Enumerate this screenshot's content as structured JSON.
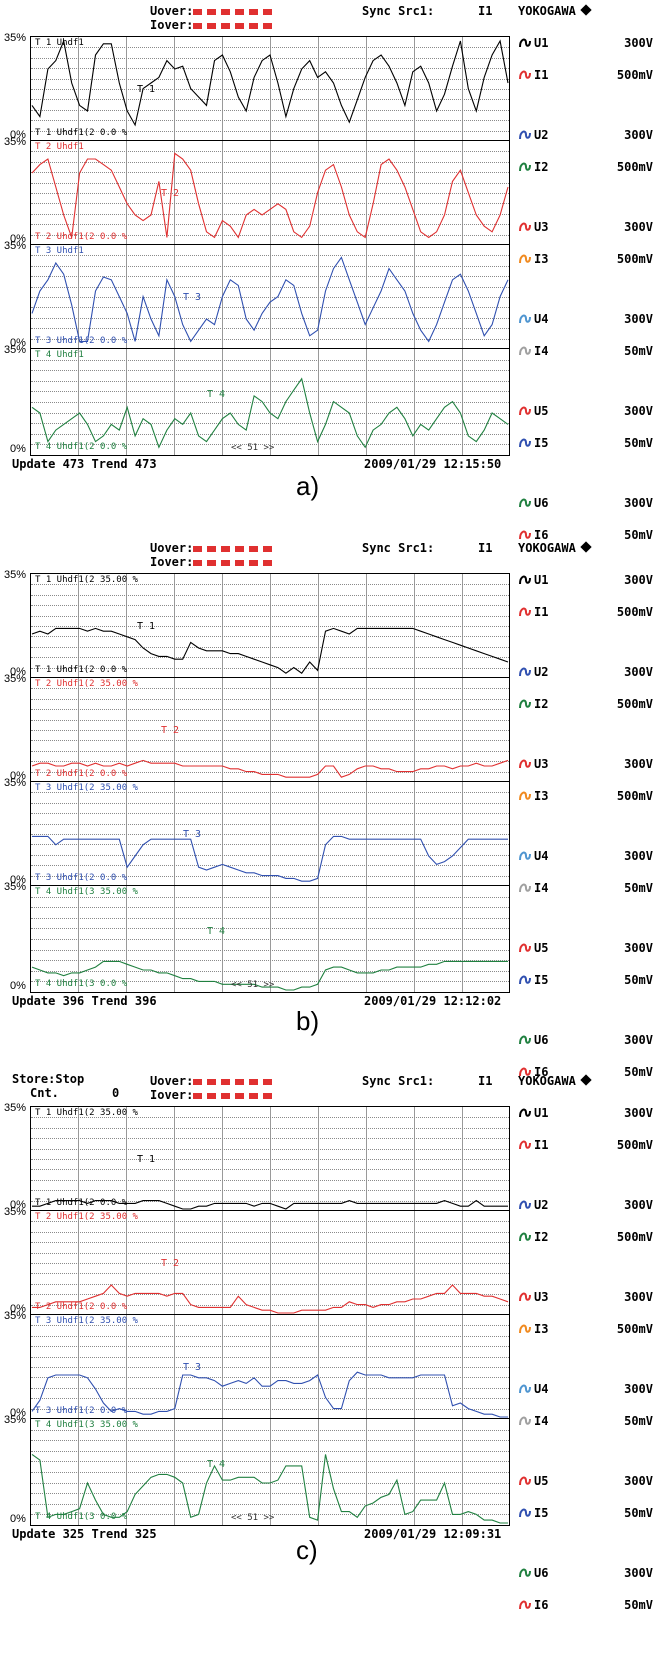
{
  "screens": [
    {
      "caption": "a)",
      "store": "",
      "cnt_label": "",
      "cnt_value": "",
      "uover": "Uover:",
      "iover": "Iover:",
      "sync": "Sync Src1:",
      "sync_value": "I1",
      "brand": "YOKOGAWA",
      "update_label": "Update",
      "update_value": "473",
      "trend_label": "Trend",
      "trend_value": "473",
      "datetime": "2009/01/29 12:15:50",
      "scroll": "<< 51 >>",
      "panels": [
        {
          "title": "T 1 Uhdf1",
          "foot": "T 1 Uhdf1(2 0.0 %",
          "tag": "T 1",
          "color": "#000000",
          "ymax": "35%",
          "ymin": "0%",
          "values": [
            12,
            8,
            25,
            28,
            35,
            20,
            12,
            10,
            30,
            34,
            34,
            20,
            10,
            5,
            18,
            20,
            22,
            28,
            25,
            26,
            18,
            15,
            12,
            28,
            30,
            24,
            15,
            10,
            22,
            28,
            30,
            20,
            8,
            18,
            25,
            28,
            22,
            24,
            20,
            12,
            6,
            14,
            22,
            28,
            30,
            26,
            20,
            12,
            24,
            26,
            20,
            10,
            16,
            26,
            35,
            18,
            10,
            22,
            30,
            35,
            20
          ]
        },
        {
          "title": "T 2 Uhdf1",
          "foot": "T 2 Uhdf1(2 0.0 %",
          "tag": "T 2",
          "color": "#e03030",
          "ymax": "35%",
          "ymin": "0%",
          "values": [
            25,
            28,
            30,
            20,
            10,
            2,
            25,
            30,
            30,
            28,
            26,
            20,
            14,
            10,
            8,
            10,
            22,
            2,
            32,
            30,
            26,
            14,
            4,
            2,
            8,
            6,
            2,
            10,
            12,
            10,
            12,
            14,
            12,
            4,
            2,
            6,
            18,
            26,
            28,
            20,
            10,
            4,
            2,
            14,
            28,
            30,
            26,
            20,
            12,
            4,
            2,
            4,
            10,
            22,
            26,
            18,
            10,
            6,
            4,
            10,
            20
          ]
        },
        {
          "title": "T 3 Uhdf1",
          "foot": "T 3 Uhdf1(2 0.0 %",
          "tag": "T 3",
          "color": "#3050b0",
          "ymax": "35%",
          "ymin": "0%",
          "values": [
            12,
            20,
            24,
            30,
            26,
            15,
            2,
            2,
            20,
            25,
            24,
            18,
            12,
            2,
            18,
            10,
            4,
            24,
            18,
            8,
            2,
            6,
            10,
            8,
            18,
            24,
            22,
            10,
            6,
            12,
            16,
            18,
            24,
            22,
            12,
            4,
            6,
            20,
            28,
            32,
            24,
            16,
            8,
            14,
            20,
            28,
            24,
            20,
            12,
            6,
            2,
            8,
            16,
            24,
            26,
            20,
            12,
            4,
            8,
            18,
            24
          ]
        },
        {
          "title": "T 4 Uhdf1",
          "foot": "T 4 Uhdf1(2 0.0 %",
          "tag": "T 4",
          "color": "#208040",
          "ymax": "35%",
          "ymin": "0%",
          "values": [
            16,
            14,
            4,
            8,
            10,
            12,
            14,
            10,
            4,
            6,
            10,
            8,
            16,
            6,
            12,
            10,
            2,
            8,
            12,
            10,
            14,
            6,
            4,
            8,
            12,
            14,
            10,
            8,
            20,
            18,
            14,
            12,
            18,
            22,
            26,
            14,
            4,
            10,
            18,
            16,
            14,
            6,
            2,
            8,
            10,
            14,
            16,
            12,
            6,
            10,
            8,
            12,
            16,
            18,
            14,
            6,
            4,
            8,
            14,
            12,
            10
          ]
        }
      ]
    },
    {
      "caption": "b)",
      "store": "",
      "cnt_label": "",
      "cnt_value": "",
      "uover": "Uover:",
      "iover": "Iover:",
      "sync": "Sync Src1:",
      "sync_value": "I1",
      "brand": "YOKOGAWA",
      "update_label": "Update",
      "update_value": "396",
      "trend_label": "Trend",
      "trend_value": "396",
      "datetime": "2009/01/29 12:12:02",
      "scroll": "<< 51 >>",
      "panels": [
        {
          "title": "T 1 Uhdf1(2 35.00 %",
          "foot": "T 1 Uhdf1(2 0.0 %",
          "tag": "T 1",
          "color": "#000000",
          "ymax": "35%",
          "ymin": "0%",
          "values": [
            15,
            16,
            15,
            17,
            17,
            17,
            17,
            16,
            17,
            16,
            16,
            15,
            14,
            13,
            10,
            8,
            7,
            7,
            6,
            6,
            12,
            10,
            9,
            9,
            9,
            8,
            8,
            7,
            6,
            5,
            4,
            3,
            1,
            3,
            1,
            5,
            2,
            16,
            17,
            16,
            15,
            17,
            17,
            17,
            17,
            17,
            17,
            17,
            17,
            16,
            15,
            14,
            13,
            12,
            11,
            10,
            9,
            8,
            7,
            6,
            5
          ]
        },
        {
          "title": "T 2 Uhdf1(2 35.00 %",
          "foot": "T 2 Uhdf1(2 0.0 %",
          "tag": "T 2",
          "color": "#e03030",
          "ymax": "35%",
          "ymin": "0%",
          "values": [
            5,
            6,
            6,
            5,
            5,
            6,
            6,
            5,
            6,
            5,
            5,
            6,
            5,
            6,
            7,
            6,
            6,
            6,
            6,
            5,
            5,
            5,
            5,
            5,
            5,
            4,
            4,
            3,
            3,
            2,
            2,
            2,
            1,
            1,
            1,
            1,
            2,
            5,
            5,
            1,
            2,
            4,
            5,
            5,
            4,
            4,
            3,
            3,
            3,
            4,
            4,
            5,
            5,
            4,
            5,
            5,
            6,
            5,
            5,
            6,
            7
          ]
        },
        {
          "title": "T 3 Uhdf1(2 35.00 %",
          "foot": "T 3 Uhdf1(2 0.0 %",
          "tag": "T 3",
          "color": "#3050b0",
          "ymax": "35%",
          "ymin": "0%",
          "values": [
            17,
            17,
            17,
            14,
            16,
            16,
            16,
            16,
            16,
            16,
            16,
            16,
            6,
            10,
            14,
            16,
            16,
            16,
            16,
            16,
            16,
            6,
            5,
            6,
            7,
            6,
            5,
            4,
            4,
            3,
            3,
            3,
            2,
            2,
            1,
            1,
            2,
            14,
            17,
            17,
            16,
            16,
            16,
            16,
            16,
            16,
            16,
            16,
            16,
            16,
            10,
            7,
            8,
            10,
            13,
            16,
            16,
            16,
            16,
            16,
            16
          ]
        },
        {
          "title": "T 4 Uhdf1(3 35.00 %",
          "foot": "T 4 Uhdf1(3 0.0 %",
          "tag": "T 4",
          "color": "#208040",
          "ymax": "35%",
          "ymin": "0%",
          "values": [
            8,
            7,
            6,
            6,
            5,
            6,
            6,
            7,
            8,
            10,
            10,
            10,
            9,
            8,
            7,
            7,
            6,
            6,
            5,
            4,
            4,
            3,
            3,
            3,
            2,
            2,
            2,
            2,
            2,
            1,
            1,
            1,
            0,
            0,
            1,
            1,
            2,
            7,
            8,
            8,
            7,
            6,
            6,
            6,
            7,
            7,
            8,
            8,
            8,
            8,
            9,
            9,
            10,
            10,
            10,
            10,
            10,
            10,
            10,
            10,
            10
          ]
        }
      ]
    },
    {
      "caption": "c)",
      "store": "Store:Stop",
      "cnt_label": "Cnt.",
      "cnt_value": "0",
      "uover": "Uover:",
      "iover": "Iover:",
      "sync": "Sync Src1:",
      "sync_value": "I1",
      "brand": "YOKOGAWA",
      "update_label": "Update",
      "update_value": "325",
      "trend_label": "Trend",
      "trend_value": "325",
      "datetime": "2009/01/29 12:09:31",
      "scroll": "<< 51 >>",
      "panels": [
        {
          "title": "T 1 Uhdf1(2 35.00 %",
          "foot": "T 1 Uhdf1(2 0.0 %",
          "tag": "T 1",
          "color": "#000000",
          "ymax": "35%",
          "ymin": "0%",
          "values": [
            1,
            1,
            2,
            3,
            3,
            3,
            3,
            2,
            3,
            3,
            3,
            2,
            2,
            2,
            3,
            3,
            3,
            2,
            1,
            0,
            0,
            1,
            1,
            2,
            2,
            2,
            2,
            2,
            1,
            2,
            2,
            1,
            0,
            2,
            2,
            2,
            2,
            2,
            2,
            2,
            3,
            2,
            2,
            2,
            2,
            2,
            2,
            2,
            2,
            2,
            2,
            2,
            3,
            2,
            1,
            1,
            3,
            1,
            1,
            1,
            1
          ]
        },
        {
          "title": "T 2 Uhdf1(2 35.00 %",
          "foot": "T 2 Uhdf1(2 0.0 %",
          "tag": "T 2",
          "color": "#e03030",
          "ymax": "35%",
          "ymin": "0%",
          "values": [
            2,
            2,
            3,
            4,
            4,
            4,
            4,
            5,
            6,
            7,
            10,
            7,
            6,
            7,
            7,
            7,
            7,
            6,
            7,
            7,
            3,
            2,
            2,
            2,
            2,
            2,
            6,
            3,
            2,
            1,
            1,
            0,
            0,
            0,
            1,
            1,
            1,
            1,
            2,
            2,
            4,
            3,
            3,
            2,
            3,
            3,
            4,
            4,
            5,
            5,
            6,
            7,
            7,
            10,
            7,
            7,
            7,
            6,
            6,
            5,
            4
          ]
        },
        {
          "title": "T 3 Uhdf1(2 35.00 %",
          "foot": "T 3 Uhdf1(2 0.0 %",
          "tag": "T 3",
          "color": "#3050b0",
          "ymax": "35%",
          "ymin": "0%",
          "values": [
            2,
            6,
            14,
            15,
            15,
            15,
            15,
            14,
            10,
            5,
            2,
            3,
            2,
            2,
            1,
            1,
            2,
            2,
            3,
            15,
            15,
            14,
            14,
            13,
            11,
            12,
            13,
            12,
            14,
            11,
            11,
            13,
            13,
            12,
            12,
            13,
            15,
            7,
            3,
            3,
            13,
            16,
            15,
            15,
            15,
            14,
            14,
            14,
            14,
            15,
            15,
            15,
            15,
            4,
            5,
            3,
            2,
            1,
            1,
            0,
            0
          ]
        },
        {
          "title": "T 4 Uhdf1(3 35.00 %",
          "foot": "T 4 Uhdf1(3 0.0 %",
          "tag": "T 4",
          "color": "#208040",
          "ymax": "35%",
          "ymin": "0%",
          "values": [
            24,
            22,
            2,
            3,
            3,
            4,
            5,
            14,
            8,
            3,
            2,
            2,
            4,
            10,
            13,
            16,
            17,
            17,
            16,
            14,
            2,
            3,
            14,
            20,
            15,
            15,
            16,
            16,
            16,
            14,
            14,
            15,
            20,
            20,
            20,
            2,
            1,
            24,
            12,
            4,
            4,
            2,
            6,
            7,
            9,
            10,
            15,
            3,
            4,
            8,
            8,
            8,
            14,
            3,
            3,
            4,
            3,
            1,
            1,
            0,
            0
          ]
        }
      ]
    }
  ],
  "channels": [
    {
      "name": "U1",
      "range": "300V",
      "color": "#000000"
    },
    {
      "name": "I1",
      "range": "500mV",
      "color": "#e03030"
    },
    {
      "name": "U2",
      "range": "300V",
      "color": "#3050b0"
    },
    {
      "name": "I2",
      "range": "500mV",
      "color": "#208040"
    },
    {
      "name": "U3",
      "range": "300V",
      "color": "#e03030"
    },
    {
      "name": "I3",
      "range": "500mV",
      "color": "#f08a20"
    },
    {
      "name": "U4",
      "range": "300V",
      "color": "#4f95d0"
    },
    {
      "name": "I4",
      "range": "50mV",
      "color": "#a0a0a0"
    },
    {
      "name": "U5",
      "range": "300V",
      "color": "#e03030"
    },
    {
      "name": "I5",
      "range": "50mV",
      "color": "#3050b0"
    },
    {
      "name": "U6",
      "range": "300V",
      "color": "#208040"
    },
    {
      "name": "I6",
      "range": "50mV",
      "color": "#e03030"
    }
  ]
}
